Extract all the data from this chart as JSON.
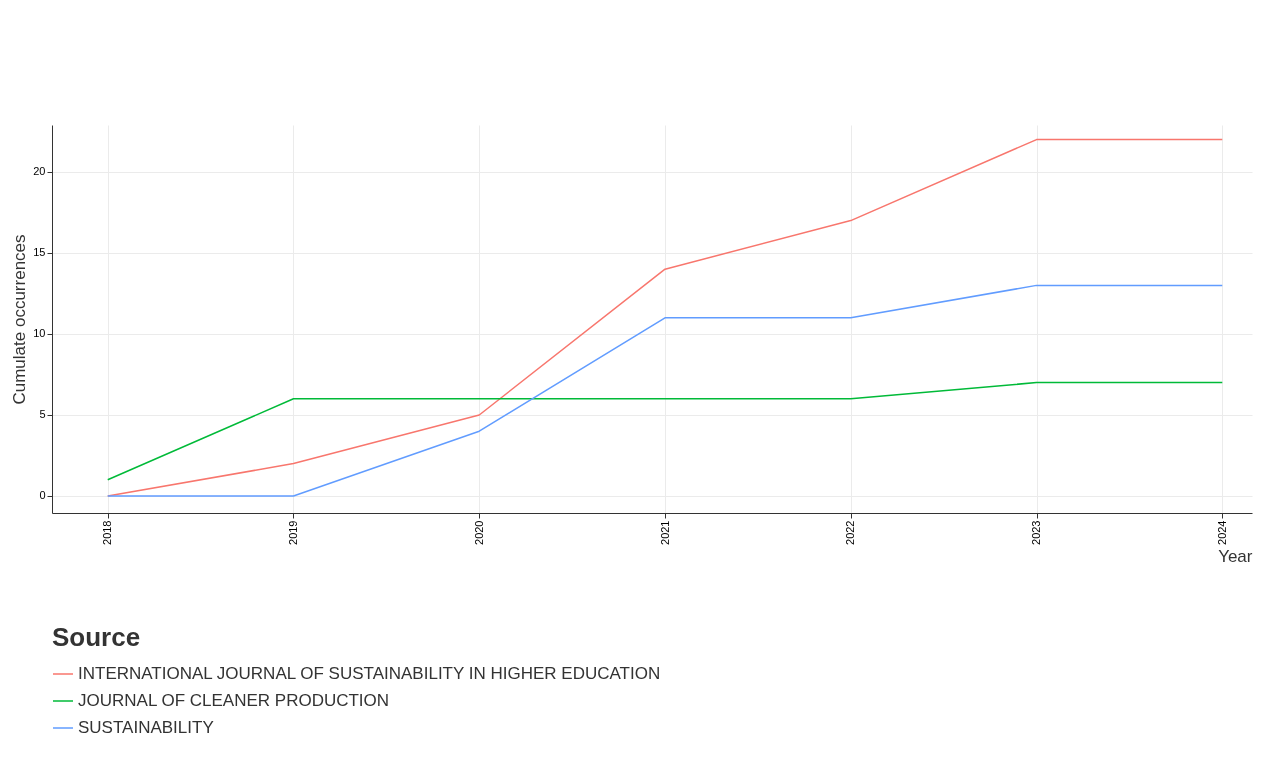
{
  "chart_data": {
    "type": "line",
    "xlabel": "Year",
    "ylabel": "Cumulate occurrences",
    "legend_title": "Source",
    "x": [
      2018,
      2019,
      2020,
      2021,
      2022,
      2023,
      2024
    ],
    "series": [
      {
        "name": "INTERNATIONAL JOURNAL OF SUSTAINABILITY IN HIGHER EDUCATION",
        "color": "#f8766d",
        "values": [
          0,
          2,
          5,
          14,
          17,
          22,
          22
        ]
      },
      {
        "name": "JOURNAL OF CLEANER PRODUCTION",
        "color": "#00ba38",
        "values": [
          1,
          6,
          6,
          6,
          6,
          7,
          7
        ]
      },
      {
        "name": "SUSTAINABILITY",
        "color": "#619cff",
        "values": [
          0,
          0,
          4,
          11,
          11,
          13,
          13
        ]
      }
    ],
    "xlim": [
      2017.7,
      2024.16
    ],
    "xticks": [
      2018,
      2019,
      2020,
      2021,
      2022,
      2023,
      2024
    ],
    "ylim": [
      -1.05,
      22.9
    ],
    "yticks": [
      0,
      5,
      10,
      15,
      20
    ],
    "grid": true,
    "legend": "bottom",
    "marker": "none",
    "line_style": "solid"
  }
}
